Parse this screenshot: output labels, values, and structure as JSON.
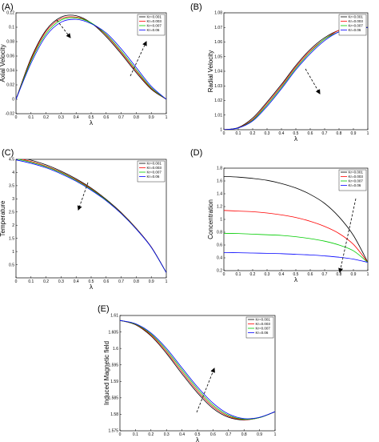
{
  "chart_data": [
    {
      "type": "line",
      "panel": "(A)",
      "xlabel": "λ",
      "ylabel": "Axial Velocity",
      "xlim": [
        0,
        1
      ],
      "ylim": [
        -0.02,
        0.12
      ],
      "x_ticks": [
        "0",
        "0.1",
        "0.2",
        "0.3",
        "0.4",
        "0.5",
        "0.6",
        "0.7",
        "0.8",
        "0.9",
        "1"
      ],
      "y_ticks": [
        "-0.02",
        "0",
        "0.02",
        "0.04",
        "0.06",
        "0.08",
        "0.1",
        "0.12"
      ],
      "legend_position": "top-right",
      "x": [
        0,
        0.1,
        0.2,
        0.3,
        0.4,
        0.5,
        0.6,
        0.7,
        0.8,
        0.9,
        1
      ],
      "series": [
        {
          "name": "Kr=0.001",
          "color": "#000000",
          "values": [
            0,
            0.057,
            0.096,
            0.114,
            0.116,
            0.106,
            0.087,
            0.063,
            0.037,
            0.014,
            0
          ]
        },
        {
          "name": "Kr=0.003",
          "color": "#ff0000",
          "values": [
            0,
            0.055,
            0.094,
            0.112,
            0.114,
            0.106,
            0.089,
            0.065,
            0.039,
            0.015,
            0
          ]
        },
        {
          "name": "Kr=0.007",
          "color": "#00cc00",
          "values": [
            0,
            0.053,
            0.091,
            0.11,
            0.113,
            0.106,
            0.09,
            0.067,
            0.041,
            0.016,
            0
          ]
        },
        {
          "name": "Kr=0.06",
          "color": "#0000ff",
          "values": [
            0,
            0.05,
            0.088,
            0.107,
            0.111,
            0.105,
            0.092,
            0.07,
            0.044,
            0.018,
            0
          ]
        }
      ]
    },
    {
      "type": "line",
      "panel": "(B)",
      "xlabel": "λ",
      "ylabel": "Radial Velocity",
      "xlim": [
        0,
        1
      ],
      "ylim": [
        1,
        1.08
      ],
      "x_ticks": [
        "0",
        "0.1",
        "0.2",
        "0.3",
        "0.4",
        "0.5",
        "0.6",
        "0.7",
        "0.8",
        "0.9",
        "1"
      ],
      "y_ticks": [
        "1",
        "1.01",
        "1.02",
        "1.03",
        "1.04",
        "1.05",
        "1.06",
        "1.07",
        "1.08"
      ],
      "legend_position": "top-right",
      "x": [
        0,
        0.1,
        0.2,
        0.3,
        0.4,
        0.5,
        0.6,
        0.7,
        0.8,
        0.9,
        1
      ],
      "series": [
        {
          "name": "Kr=0.001",
          "color": "#000000",
          "values": [
            1.0,
            1.0015,
            1.008,
            1.019,
            1.031,
            1.044,
            1.055,
            1.063,
            1.068,
            1.0695,
            1.07
          ]
        },
        {
          "name": "Kr=0.003",
          "color": "#ff0000",
          "values": [
            1.0,
            1.0014,
            1.007,
            1.018,
            1.03,
            1.043,
            1.054,
            1.062,
            1.068,
            1.0695,
            1.07
          ]
        },
        {
          "name": "Kr=0.007",
          "color": "#00cc00",
          "values": [
            1.0,
            1.0013,
            1.0065,
            1.017,
            1.029,
            1.042,
            1.053,
            1.062,
            1.067,
            1.0695,
            1.07
          ]
        },
        {
          "name": "Kr=0.06",
          "color": "#0000ff",
          "values": [
            1.0,
            1.0012,
            1.006,
            1.016,
            1.028,
            1.041,
            1.052,
            1.061,
            1.067,
            1.0695,
            1.07
          ]
        }
      ]
    },
    {
      "type": "line",
      "panel": "(C)",
      "xlabel": "λ",
      "ylabel": "Temperature",
      "xlim": [
        0,
        1
      ],
      "ylim": [
        0,
        4.5
      ],
      "x_ticks": [
        "0",
        "0.1",
        "0.2",
        "0.3",
        "0.4",
        "0.5",
        "0.6",
        "0.7",
        "0.8",
        "0.9",
        "1"
      ],
      "y_ticks": [
        "0.5",
        "1",
        "1.5",
        "2",
        "2.5",
        "3",
        "3.5",
        "4",
        "4.5"
      ],
      "legend_position": "top-right",
      "x": [
        0,
        0.1,
        0.2,
        0.3,
        0.4,
        0.5,
        0.6,
        0.7,
        0.8,
        0.9,
        1
      ],
      "series": [
        {
          "name": "Kr=0.001",
          "color": "#000000",
          "values": [
            4.6,
            4.47,
            4.29,
            4.05,
            3.76,
            3.41,
            2.98,
            2.48,
            1.88,
            1.17,
            0.2
          ]
        },
        {
          "name": "Kr=0.003",
          "color": "#ff0000",
          "values": [
            4.55,
            4.42,
            4.24,
            4.01,
            3.72,
            3.38,
            2.96,
            2.46,
            1.87,
            1.17,
            0.2
          ]
        },
        {
          "name": "Kr=0.007",
          "color": "#00cc00",
          "values": [
            4.52,
            4.39,
            4.22,
            3.99,
            3.7,
            3.36,
            2.95,
            2.45,
            1.86,
            1.16,
            0.2
          ]
        },
        {
          "name": "Kr=0.06",
          "color": "#0000ff",
          "values": [
            4.48,
            4.35,
            4.18,
            3.95,
            3.67,
            3.33,
            2.93,
            2.44,
            1.85,
            1.16,
            0.2
          ]
        }
      ]
    },
    {
      "type": "line",
      "panel": "(D)",
      "xlabel": "λ",
      "ylabel": "Concentration",
      "xlim": [
        0,
        1
      ],
      "ylim": [
        0.2,
        1.8
      ],
      "x_ticks": [
        "0",
        "0.1",
        "0.2",
        "0.3",
        "0.4",
        "0.5",
        "0.6",
        "0.7",
        "0.8",
        "0.9",
        "1"
      ],
      "y_ticks": [
        "0.2",
        "0.4",
        "0.6",
        "0.8",
        "1",
        "1.2",
        "1.4",
        "1.6",
        "1.8"
      ],
      "legend_position": "top-right",
      "x": [
        0,
        0.1,
        0.2,
        0.3,
        0.4,
        0.5,
        0.6,
        0.7,
        0.8,
        0.9,
        1
      ],
      "series": [
        {
          "name": "Kr=0.001",
          "color": "#000000",
          "values": [
            1.67,
            1.66,
            1.64,
            1.61,
            1.56,
            1.49,
            1.39,
            1.25,
            1.04,
            0.75,
            0.33
          ]
        },
        {
          "name": "Kr=0.003",
          "color": "#ff0000",
          "values": [
            1.14,
            1.13,
            1.12,
            1.1,
            1.07,
            1.03,
            0.97,
            0.89,
            0.78,
            0.61,
            0.33
          ]
        },
        {
          "name": "Kr=0.007",
          "color": "#00cc00",
          "values": [
            0.78,
            0.78,
            0.77,
            0.76,
            0.75,
            0.73,
            0.7,
            0.66,
            0.6,
            0.51,
            0.33
          ]
        },
        {
          "name": "Kr=0.06",
          "color": "#0000ff",
          "values": [
            0.48,
            0.48,
            0.475,
            0.47,
            0.465,
            0.455,
            0.445,
            0.43,
            0.41,
            0.38,
            0.33
          ]
        }
      ]
    },
    {
      "type": "line",
      "panel": "(E)",
      "xlabel": "λ",
      "ylabel": "Induced Magnetic field",
      "xlim": [
        0,
        1
      ],
      "ylim": [
        1.575,
        1.61
      ],
      "x_ticks": [
        "0",
        "0.1",
        "0.2",
        "0.3",
        "0.4",
        "0.5",
        "0.6",
        "0.7",
        "0.8",
        "0.9",
        "1"
      ],
      "y_ticks": [
        "1.575",
        "1.58",
        "1.585",
        "1.59",
        "1.595",
        "1.6",
        "1.605",
        "1.61"
      ],
      "legend_position": "top-right",
      "x": [
        0,
        0.1,
        0.2,
        0.3,
        0.4,
        0.5,
        0.6,
        0.7,
        0.8,
        0.9,
        1
      ],
      "series": [
        {
          "name": "Kr=0.001",
          "color": "#000000",
          "values": [
            1.6085,
            1.6072,
            1.6038,
            1.5985,
            1.5923,
            1.5865,
            1.5818,
            1.5791,
            1.5783,
            1.579,
            1.5808
          ]
        },
        {
          "name": "Kr=0.003",
          "color": "#ff0000",
          "values": [
            1.6085,
            1.6073,
            1.6041,
            1.599,
            1.5929,
            1.5871,
            1.5823,
            1.5794,
            1.5784,
            1.579,
            1.5808
          ]
        },
        {
          "name": "Kr=0.007",
          "color": "#00cc00",
          "values": [
            1.6085,
            1.6074,
            1.6044,
            1.5995,
            1.5935,
            1.5877,
            1.5828,
            1.5797,
            1.5785,
            1.579,
            1.5808
          ]
        },
        {
          "name": "Kr=0.06",
          "color": "#0000ff",
          "values": [
            1.6085,
            1.6075,
            1.6047,
            1.6,
            1.5941,
            1.5883,
            1.5834,
            1.5801,
            1.5787,
            1.5791,
            1.5808
          ]
        }
      ]
    }
  ]
}
